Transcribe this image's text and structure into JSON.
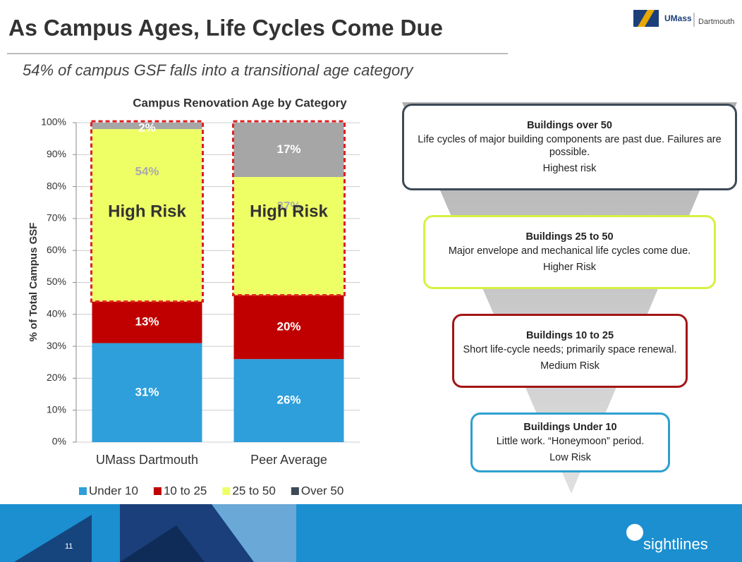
{
  "title": "As Campus Ages, Life Cycles Come Due",
  "subtitle": "54% of campus GSF falls into a transitional age category",
  "logo": {
    "brand": "UMass",
    "campus": "Dartmouth"
  },
  "footer": {
    "page_number": "11",
    "brand": "sightlines"
  },
  "chart_data": {
    "type": "stacked_bar",
    "title": "Campus Renovation Age by Category",
    "y_label": "% of Total Campus GSF",
    "categories": [
      "UMass Dartmouth",
      "Peer Average"
    ],
    "series": [
      {
        "name": "Under 10",
        "color": "#2e9fdb",
        "values": [
          31,
          26
        ],
        "value_labels": [
          "31%",
          "26%"
        ]
      },
      {
        "name": "10 to 25",
        "color": "#c00000",
        "values": [
          13,
          20
        ],
        "value_labels": [
          "13%",
          "20%"
        ]
      },
      {
        "name": "25 to 50",
        "color": "#eeff66",
        "values": [
          54,
          37
        ],
        "value_labels": [
          "54%",
          "37%"
        ]
      },
      {
        "name": "Over 50",
        "color": "#a6a6a6",
        "values": [
          2,
          17
        ],
        "value_labels": [
          "2%",
          "17%"
        ]
      }
    ],
    "ylim": [
      0,
      100
    ],
    "yticks": [
      {
        "value": 0,
        "label": "0%"
      },
      {
        "value": 10,
        "label": "10%"
      },
      {
        "value": 20,
        "label": "20%"
      },
      {
        "value": 30,
        "label": "30%"
      },
      {
        "value": 40,
        "label": "40%"
      },
      {
        "value": 50,
        "label": "50%"
      },
      {
        "value": 60,
        "label": "60%"
      },
      {
        "value": 70,
        "label": "70%"
      },
      {
        "value": 80,
        "label": "80%"
      },
      {
        "value": 90,
        "label": "90%"
      },
      {
        "value": 100,
        "label": "100%"
      }
    ],
    "grid": true,
    "annotations": [
      "High Risk",
      "High Risk"
    ]
  },
  "funnel": [
    {
      "title": "Buildings over 50",
      "description": "Life cycles of major building components are past due. Failures are possible.",
      "risk": "Highest risk",
      "color": "#3d4a56"
    },
    {
      "title": "Buildings 25 to 50",
      "description": "Major envelope and mechanical life cycles come due.",
      "risk": "Higher Risk",
      "color": "#d8f040"
    },
    {
      "title": "Buildings 10 to 25",
      "description": "Short life-cycle needs; primarily space renewal.",
      "risk": "Medium Risk",
      "color": "#a31515"
    },
    {
      "title": "Buildings Under 10",
      "description": "Little work. “Honeymoon” period.",
      "risk": "Low Risk",
      "color": "#2e9fd0"
    }
  ]
}
